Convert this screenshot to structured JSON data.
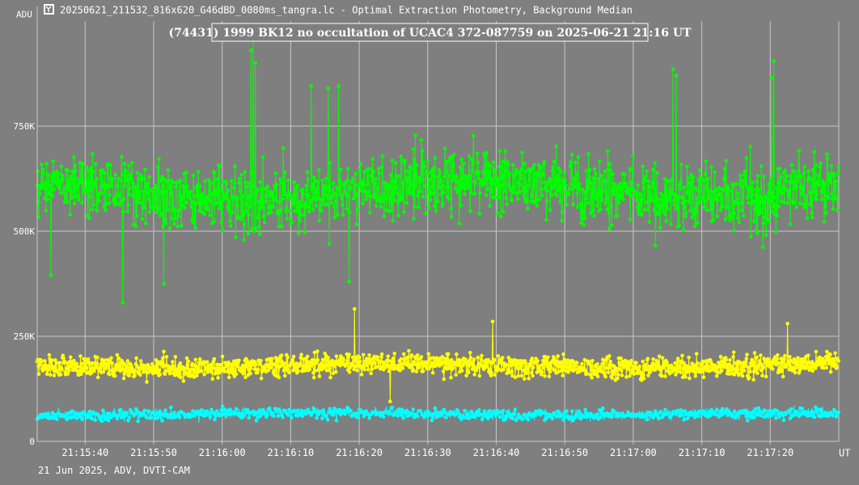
{
  "window": {
    "title": "20250621_211532_816x620_G46dBD_0080ms_tangra.lc - Optimal Extraction Photometry, Background Median",
    "icon": "tangra-app-icon"
  },
  "footer": {
    "caption": "21 Jun 2025, ADV, DVTI-CAM"
  },
  "colors": {
    "background": "#7f7f7f",
    "grid": "#c8c8c8",
    "axis_text": "#ffffff",
    "series_green": "#00ff00",
    "series_yellow": "#ffff00",
    "series_cyan": "#00ffff"
  },
  "chart_data": {
    "type": "line",
    "title": "(74431) 1999 BK12 no occultation of UCAC4 372-087759 on 2025-06-21  21:16 UT",
    "ylabel": "ADU",
    "xlabel": "UT",
    "x_start": "21:15:33",
    "x_end": "21:17:30",
    "x_ticks": [
      "21:15:40",
      "21:15:50",
      "21:16:00",
      "21:16:10",
      "21:16:20",
      "21:16:30",
      "21:16:40",
      "21:16:50",
      "21:17:00",
      "21:17:10",
      "21:17:20"
    ],
    "y_ticks": [
      {
        "value": 0,
        "label": "0"
      },
      {
        "value": 250000,
        "label": "250K"
      },
      {
        "value": 500000,
        "label": "500K"
      },
      {
        "value": 750000,
        "label": "750K"
      }
    ],
    "ylim": [
      0,
      1000000
    ],
    "grid": true,
    "sampling_s": 0.08,
    "series": [
      {
        "color": "#00ff00",
        "mean": 600000,
        "noise_sd": 75000,
        "min": 330000,
        "max": 955000,
        "peaks": [
          {
            "t": "21:16:04.5",
            "value": 955000
          },
          {
            "t": "21:16:04.2",
            "value": 930000
          },
          {
            "t": "21:16:04.8",
            "value": 900000
          },
          {
            "t": "21:17:05.8",
            "value": 885000
          },
          {
            "t": "21:17:06.3",
            "value": 870000
          },
          {
            "t": "21:17:20.5",
            "value": 905000
          },
          {
            "t": "21:17:20.2",
            "value": 865000
          },
          {
            "t": "21:16:13.0",
            "value": 845000
          },
          {
            "t": "21:16:15.5",
            "value": 840000
          },
          {
            "t": "21:16:17.0",
            "value": 845000
          }
        ],
        "dips": [
          {
            "t": "21:15:45.5",
            "value": 330000
          },
          {
            "t": "21:15:51.5",
            "value": 375000
          },
          {
            "t": "21:16:18.5",
            "value": 380000
          },
          {
            "t": "21:15:35.0",
            "value": 395000
          }
        ]
      },
      {
        "color": "#ffff00",
        "mean": 180000,
        "noise_sd": 25000,
        "min": 80000,
        "max": 315000,
        "peaks": [
          {
            "t": "21:16:19.3",
            "value": 315000
          },
          {
            "t": "21:16:39.5",
            "value": 285000
          },
          {
            "t": "21:17:22.5",
            "value": 280000
          }
        ],
        "dips": [
          {
            "t": "21:16:24.5",
            "value": 95000
          }
        ]
      },
      {
        "color": "#00ffff",
        "mean": 65000,
        "noise_sd": 13000,
        "min": 5000,
        "max": 125000,
        "peaks": [],
        "dips": []
      }
    ]
  }
}
